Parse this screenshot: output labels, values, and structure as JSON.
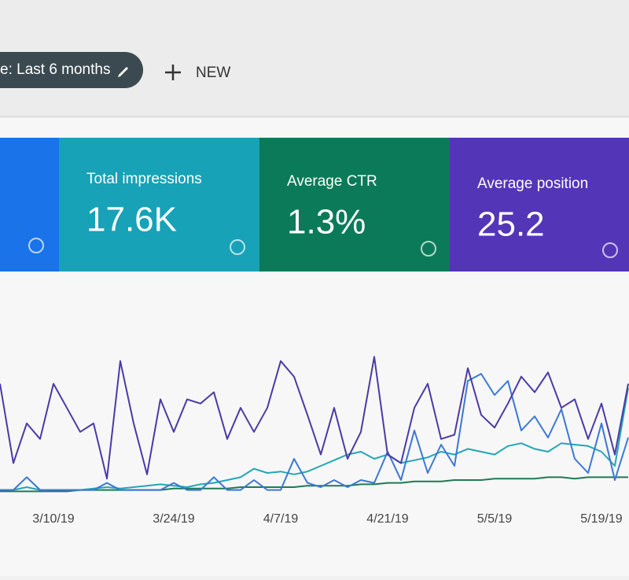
{
  "toolbar": {
    "date_filter": "e: Last 6 months",
    "new_button": "NEW"
  },
  "cards": [
    {
      "label": "Total impressions",
      "value": "17.6K",
      "color": "#17a2b8"
    },
    {
      "label": "Average CTR",
      "value": "1.3%",
      "color": "#0b7a58"
    },
    {
      "label": "Average position",
      "value": "25.2",
      "color": "#5335b8"
    }
  ],
  "chart_data": {
    "type": "line",
    "categories": [
      null,
      null,
      null,
      null,
      "3/10/19",
      null,
      null,
      null,
      null,
      null,
      null,
      null,
      null,
      "3/24/19",
      null,
      null,
      null,
      null,
      null,
      null,
      null,
      "4/7/19",
      null,
      null,
      null,
      null,
      null,
      null,
      null,
      "4/21/19",
      null,
      null,
      null,
      null,
      null,
      null,
      null,
      "5/5/19",
      null,
      null,
      null,
      null,
      null,
      null,
      null,
      "5/19/19",
      null,
      null
    ],
    "series": [
      {
        "color": "#4b3aa6",
        "values": [
          78,
          22,
          50,
          39,
          78,
          61,
          44,
          50,
          11,
          94,
          50,
          14,
          67,
          44,
          67,
          64,
          72,
          39,
          61,
          44,
          61,
          94,
          83,
          56,
          28,
          61,
          25,
          44,
          97,
          28,
          22,
          61,
          78,
          39,
          42,
          89,
          56,
          47,
          64,
          83,
          72,
          86,
          61,
          67,
          39,
          64,
          28,
          78
        ]
      },
      {
        "color": "#3a78d4",
        "values": [
          3,
          3,
          12,
          3,
          3,
          3,
          3,
          3,
          8,
          3,
          3,
          3,
          3,
          8,
          3,
          3,
          12,
          3,
          3,
          10,
          3,
          3,
          25,
          8,
          5,
          10,
          5,
          10,
          8,
          30,
          10,
          45,
          15,
          35,
          20,
          80,
          85,
          70,
          80,
          45,
          55,
          40,
          60,
          25,
          15,
          50,
          10,
          40
        ]
      },
      {
        "color": "#24a6b6",
        "values": [
          3,
          3,
          5,
          3,
          3,
          3,
          3,
          4,
          5,
          4,
          5,
          6,
          7,
          6,
          5,
          7,
          8,
          10,
          12,
          18,
          15,
          16,
          14,
          16,
          20,
          24,
          28,
          30,
          25,
          28,
          22,
          24,
          26,
          30,
          28,
          32,
          30,
          28,
          34,
          36,
          32,
          30,
          36,
          35,
          34,
          30,
          20,
          75
        ]
      },
      {
        "color": "#1f7a55",
        "values": [
          2,
          2,
          2,
          2,
          2,
          2,
          3,
          3,
          3,
          3,
          3,
          3,
          3,
          4,
          4,
          4,
          4,
          4,
          5,
          5,
          5,
          5,
          5,
          6,
          6,
          6,
          6,
          7,
          7,
          8,
          8,
          9,
          9,
          9,
          10,
          10,
          10,
          11,
          11,
          11,
          11,
          12,
          12,
          11,
          12,
          12,
          12,
          12
        ]
      }
    ]
  }
}
